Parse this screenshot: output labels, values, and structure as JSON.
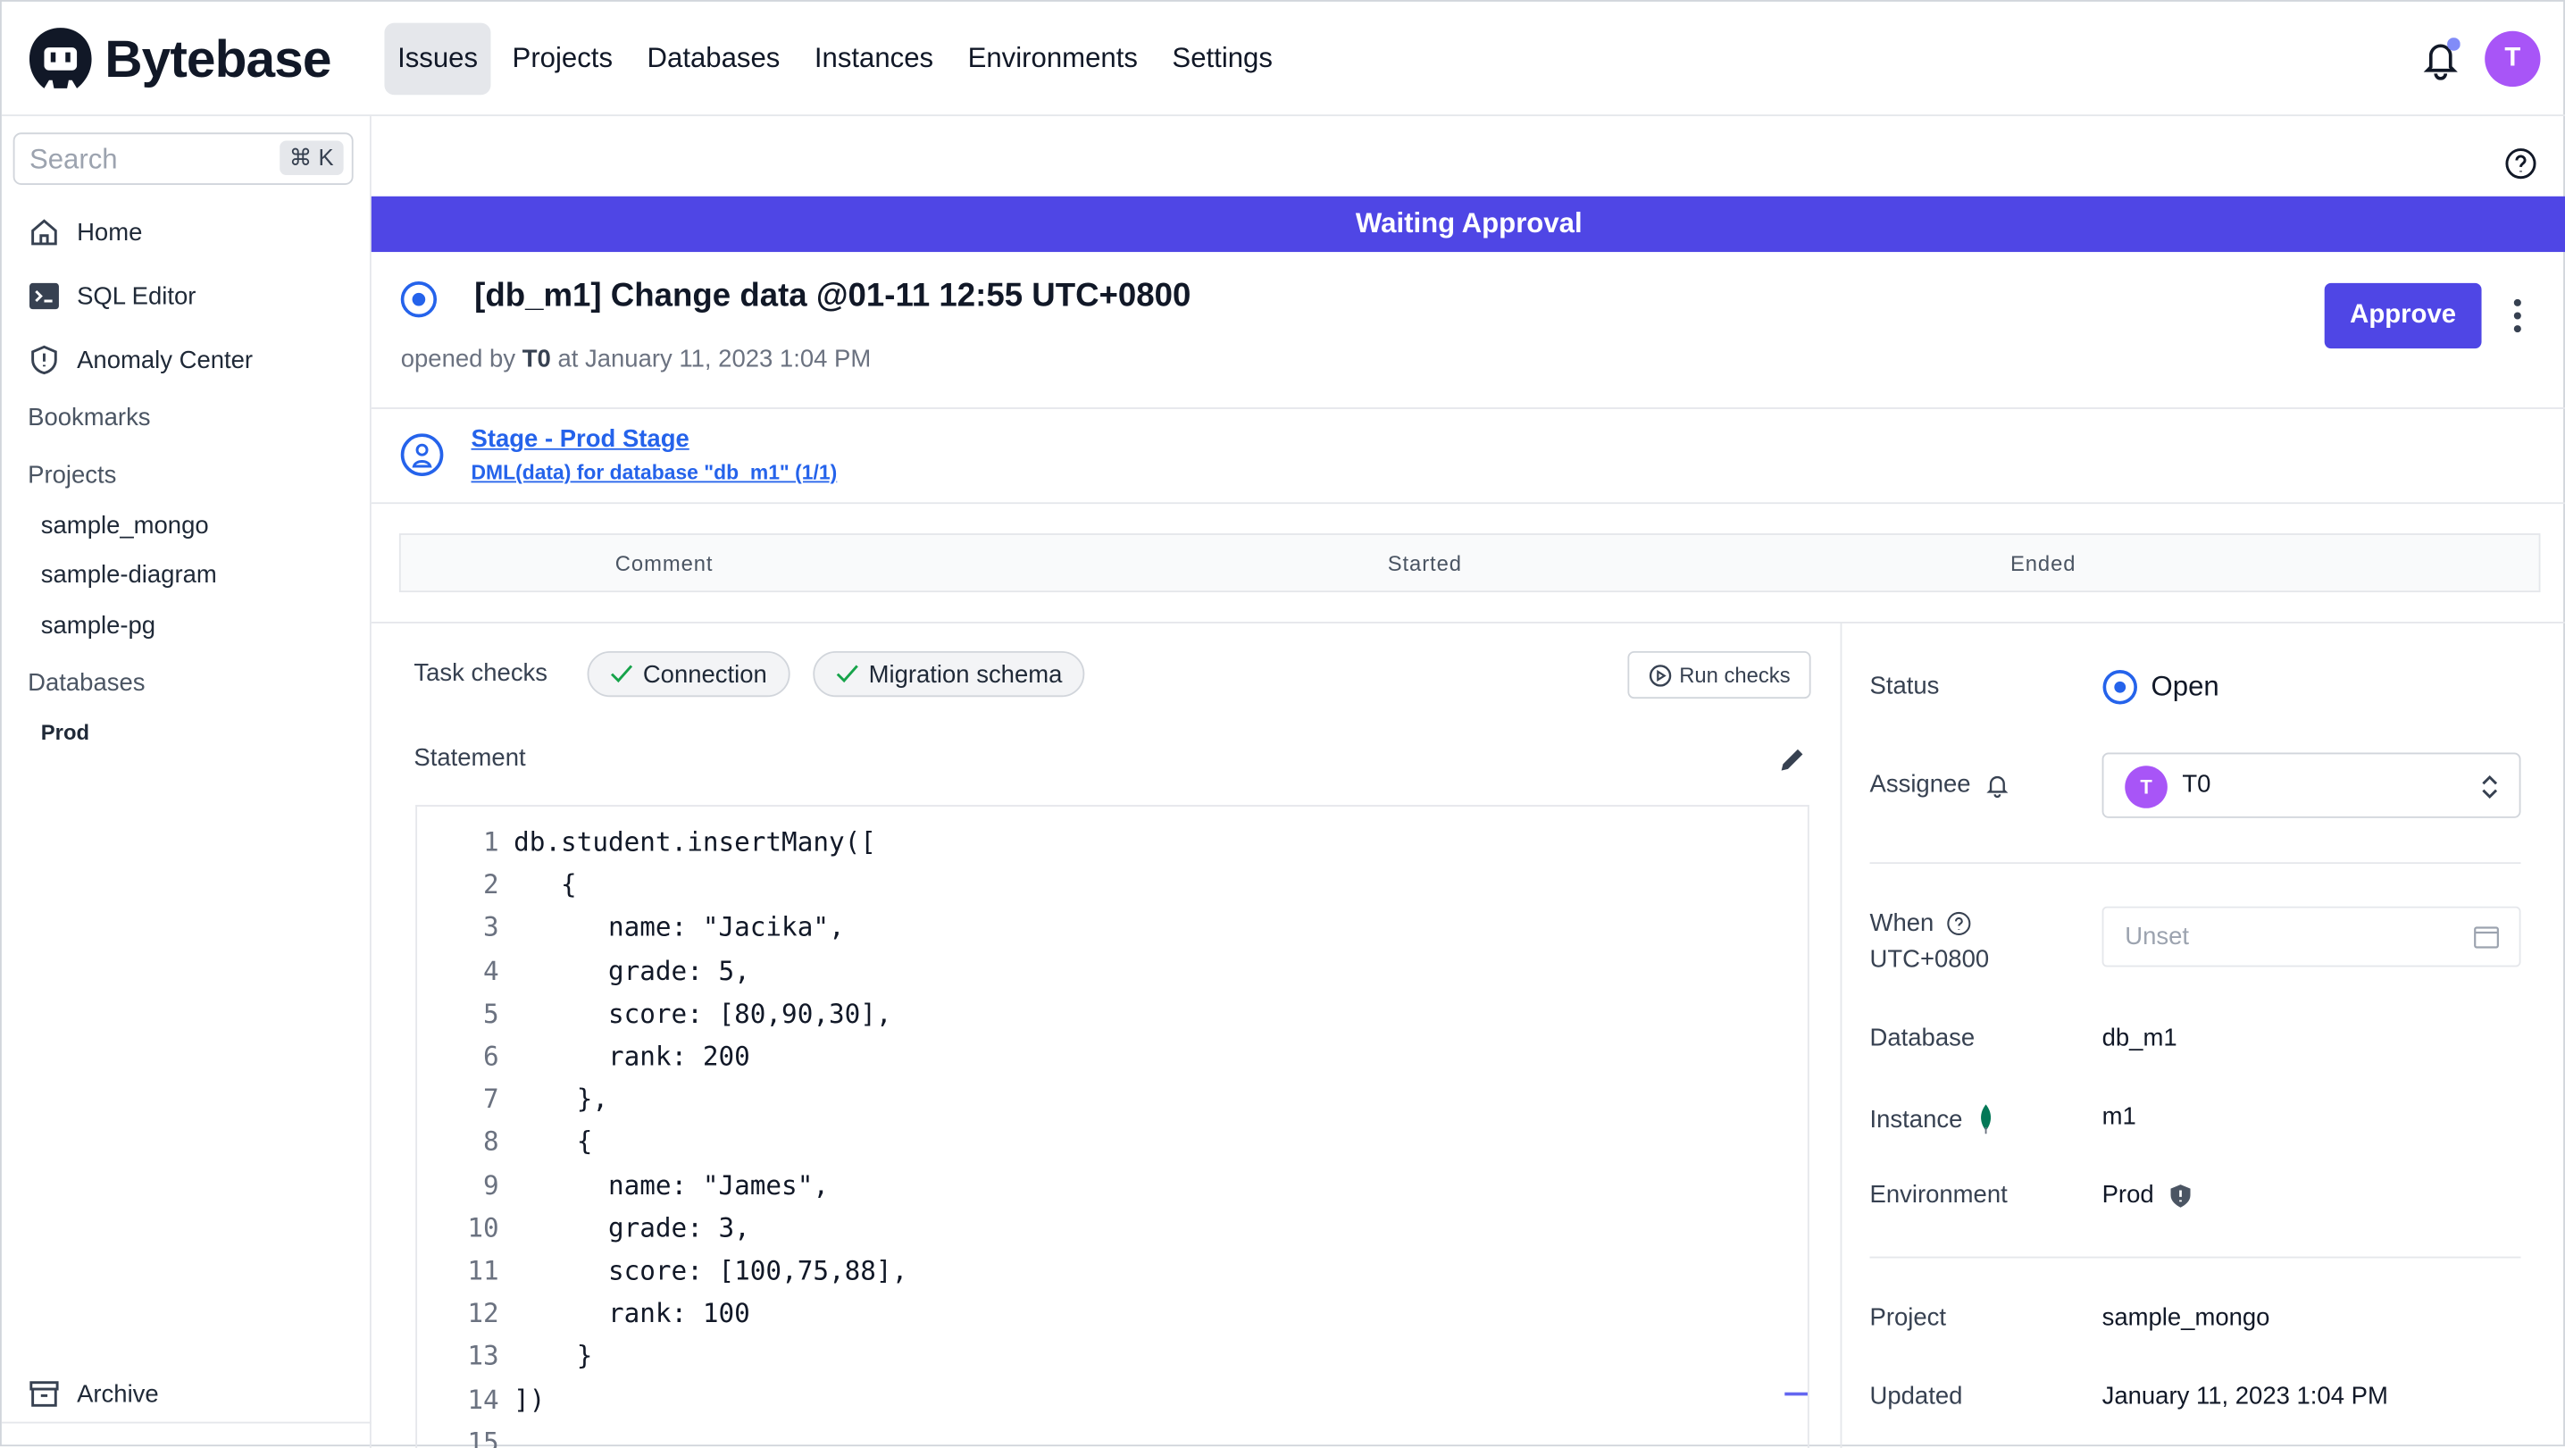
{
  "header": {
    "brand": "Bytebase",
    "nav": [
      {
        "label": "Issues",
        "active": true
      },
      {
        "label": "Projects"
      },
      {
        "label": "Databases"
      },
      {
        "label": "Instances"
      },
      {
        "label": "Environments"
      },
      {
        "label": "Settings"
      }
    ],
    "user_initial": "T"
  },
  "sidebar": {
    "search_placeholder": "Search",
    "search_shortcut": "⌘ K",
    "items": [
      {
        "label": "Home",
        "icon": "home-icon"
      },
      {
        "label": "SQL Editor",
        "icon": "terminal-icon"
      },
      {
        "label": "Anomaly Center",
        "icon": "shield-icon"
      }
    ],
    "bookmarks_heading": "Bookmarks",
    "projects_heading": "Projects",
    "projects": [
      "sample_mongo",
      "sample-diagram",
      "sample-pg"
    ],
    "databases_heading": "Databases",
    "databases": [
      "Prod"
    ],
    "archive": "Archive"
  },
  "issue": {
    "banner": "Waiting Approval",
    "title": "[db_m1] Change data @01-11 12:55 UTC+0800",
    "opened_prefix": "opened by",
    "opened_by": "T0",
    "opened_at": "at January 11, 2023 1:04 PM",
    "approve_label": "Approve",
    "stage_link": "Stage - Prod Stage",
    "task_link": "DML(data) for database \"db_m1\" (1/1)",
    "table_headers": [
      "Comment",
      "Started",
      "Ended"
    ],
    "task_checks_label": "Task checks",
    "checks": [
      "Connection",
      "Migration schema"
    ],
    "run_checks_label": "Run checks",
    "statement_label": "Statement",
    "code_lines": [
      "db.student.insertMany([",
      "   {",
      "      name: \"Jacika\",",
      "      grade: 5,",
      "      score: [80,90,30],",
      "      rank: 200",
      "    },",
      "    {",
      "      name: \"James\",",
      "      grade: 3,",
      "      score: [100,75,88],",
      "      rank: 100",
      "    }",
      "])",
      ""
    ]
  },
  "details": {
    "status_label": "Status",
    "status_value": "Open",
    "assignee_label": "Assignee",
    "assignee_value": "T0",
    "assignee_initial": "T",
    "when_label": "When",
    "when_tz": "UTC+0800",
    "when_placeholder": "Unset",
    "database_label": "Database",
    "database_value": "db_m1",
    "instance_label": "Instance",
    "instance_value": "m1",
    "environment_label": "Environment",
    "environment_value": "Prod",
    "project_label": "Project",
    "project_value": "sample_mongo",
    "updated_label": "Updated",
    "updated_value": "January 11, 2023 1:04 PM"
  },
  "colors": {
    "accent": "#4f46e5",
    "link": "#2563eb",
    "avatar": "#a855f7",
    "string": "#a31515",
    "number": "#098658"
  }
}
